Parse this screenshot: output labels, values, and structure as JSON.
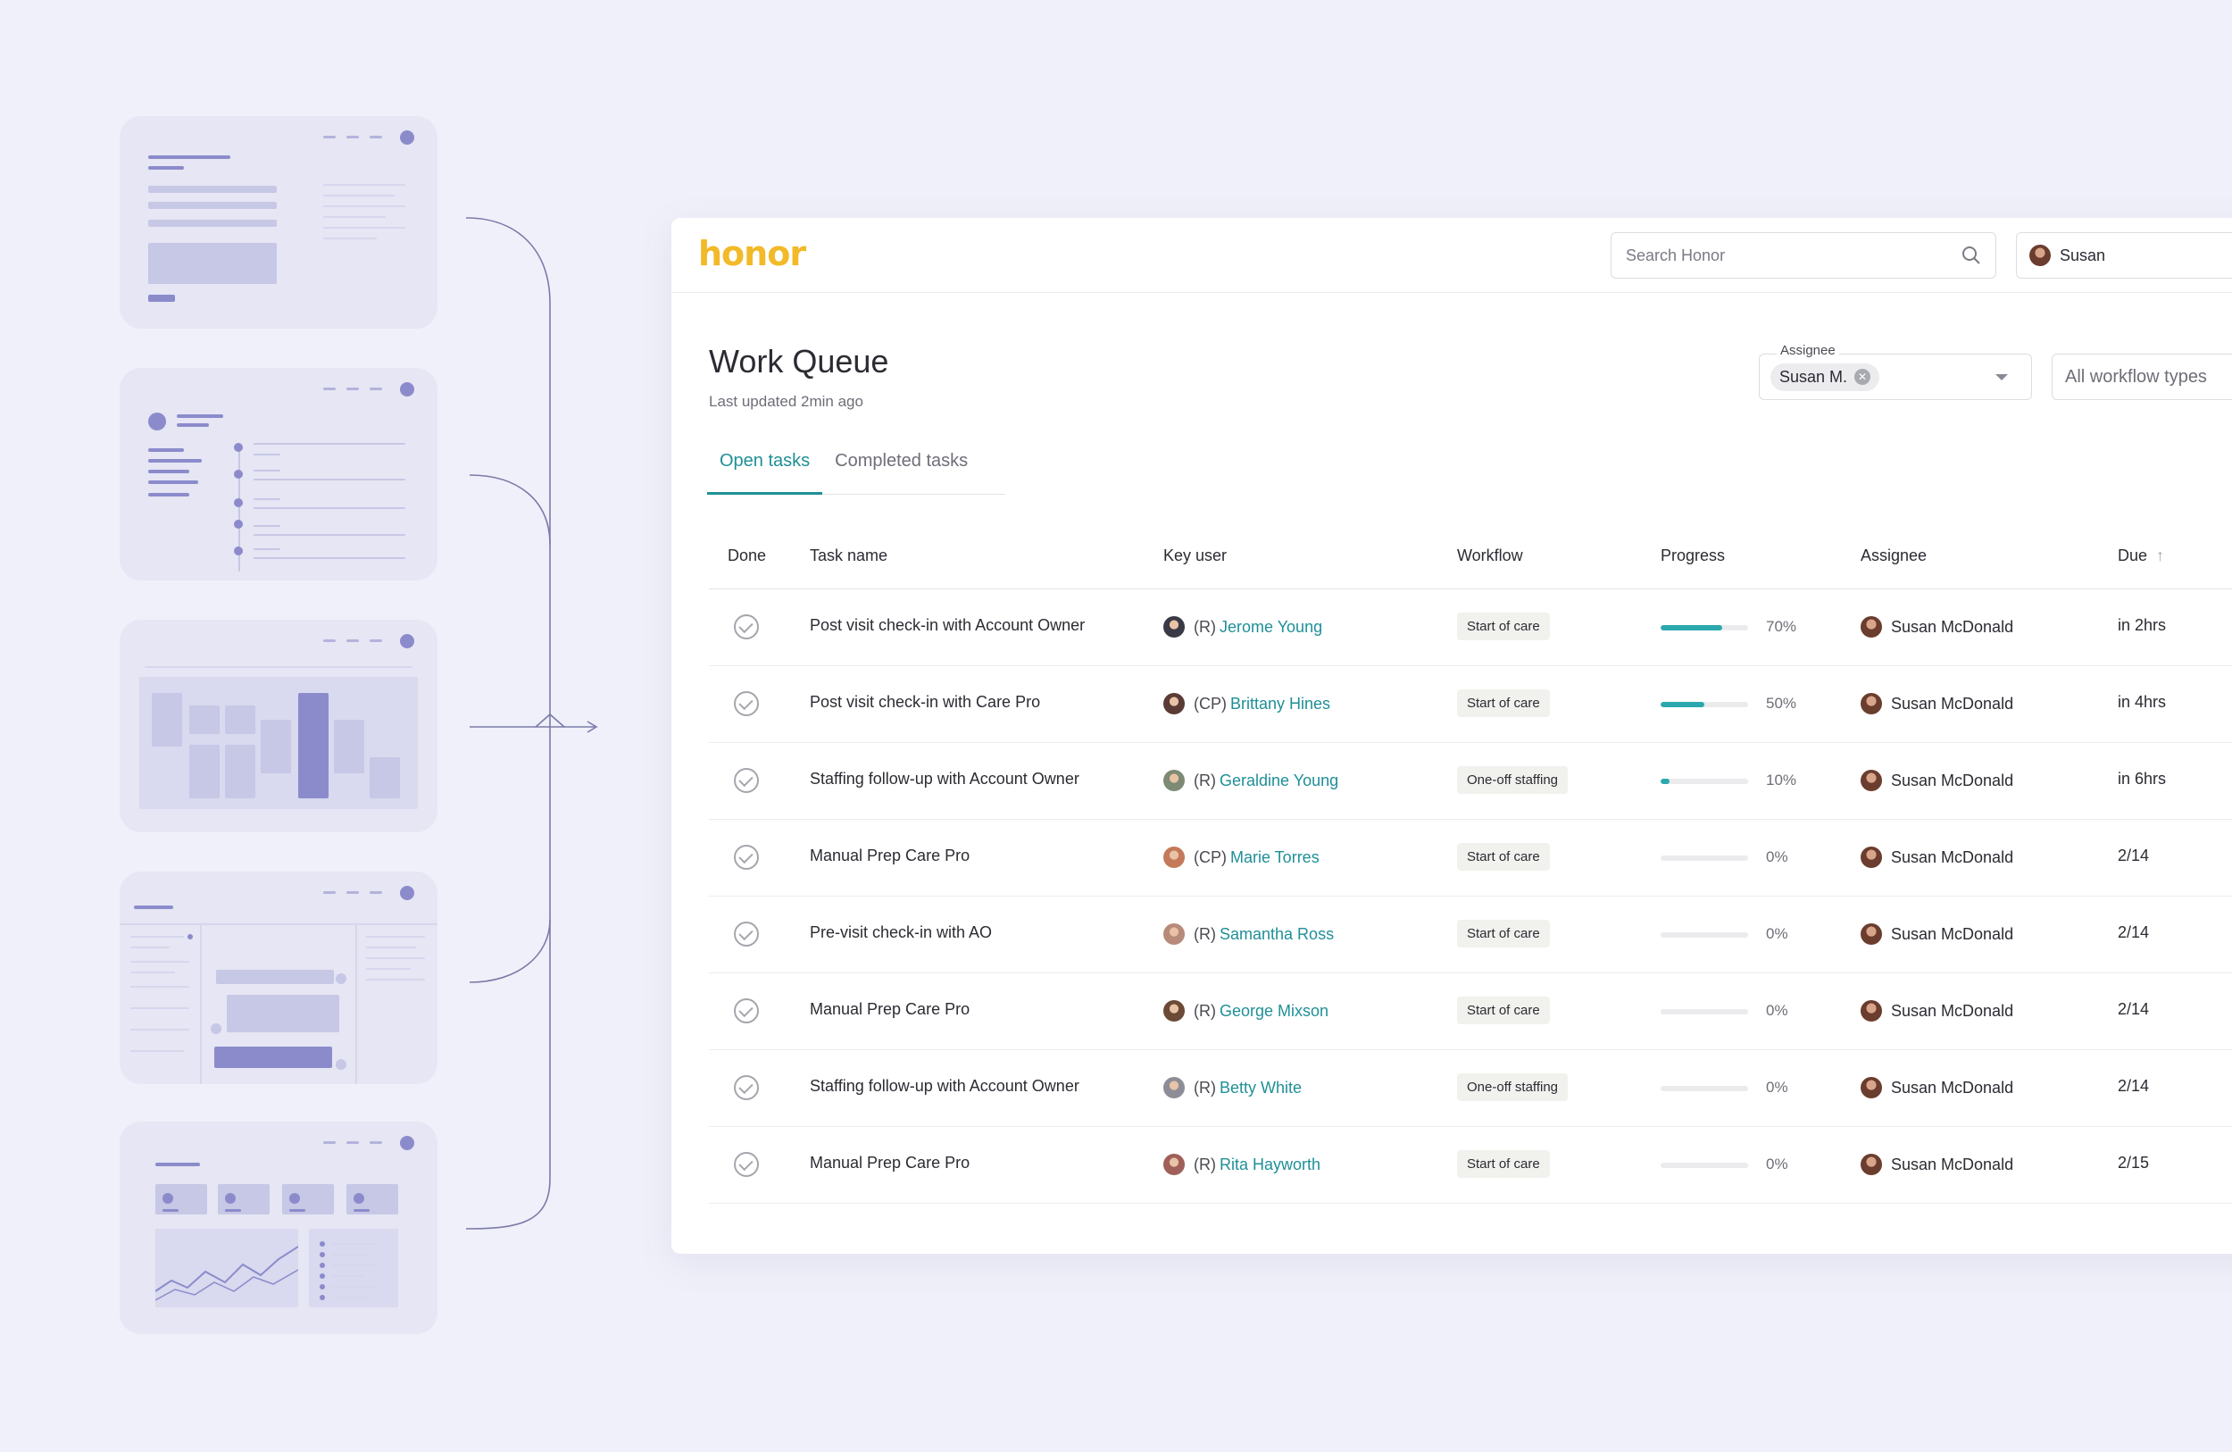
{
  "colors": {
    "brand": "#f2b928",
    "accent": "#1f8f97",
    "progress": "#2ba8ad",
    "background": "#f0f0fa",
    "wireframe": "#8b8bcc"
  },
  "header": {
    "logo": "honor",
    "search_placeholder": "Search Honor",
    "user_name": "Susan"
  },
  "page": {
    "title": "Work Queue",
    "subtitle": "Last updated 2min ago"
  },
  "tabs": [
    {
      "label": "Open tasks",
      "active": true
    },
    {
      "label": "Completed tasks",
      "active": false
    }
  ],
  "filters": {
    "assignee_label": "Assignee",
    "assignee_value": "Susan M.",
    "workflow_value": "All workflow types"
  },
  "columns": [
    "Done",
    "Task name",
    "Key user",
    "Workflow",
    "Progress",
    "Assignee",
    "Due"
  ],
  "rows": [
    {
      "task": "Post visit check-in with Account Owner",
      "role": "(R)",
      "key_user": "Jerome Young",
      "avatar_color": "#3a3a46",
      "workflow": "Start of care",
      "progress": 70,
      "progress_label": "70%",
      "assignee": "Susan McDonald",
      "due": "in 2hrs"
    },
    {
      "task": "Post visit check-in with Care Pro",
      "role": "(CP)",
      "key_user": "Brittany Hines",
      "avatar_color": "#5a3b35",
      "workflow": "Start of care",
      "progress": 50,
      "progress_label": "50%",
      "assignee": "Susan McDonald",
      "due": "in 4hrs"
    },
    {
      "task": "Staffing follow-up with Account Owner",
      "role": "(R)",
      "key_user": "Geraldine Young",
      "avatar_color": "#7d8a74",
      "workflow": "One-off staffing",
      "progress": 10,
      "progress_label": "10%",
      "assignee": "Susan McDonald",
      "due": "in 6hrs"
    },
    {
      "task": "Manual Prep Care Pro",
      "role": "(CP)",
      "key_user": "Marie Torres",
      "avatar_color": "#c47a5a",
      "workflow": "Start of care",
      "progress": 0,
      "progress_label": "0%",
      "assignee": "Susan McDonald",
      "due": "2/14"
    },
    {
      "task": "Pre-visit check-in with AO",
      "role": "(R)",
      "key_user": "Samantha Ross",
      "avatar_color": "#b88a7a",
      "workflow": "Start of care",
      "progress": 0,
      "progress_label": "0%",
      "assignee": "Susan McDonald",
      "due": "2/14"
    },
    {
      "task": "Manual Prep Care Pro",
      "role": "(R)",
      "key_user": "George Mixson",
      "avatar_color": "#6b4a36",
      "workflow": "Start of care",
      "progress": 0,
      "progress_label": "0%",
      "assignee": "Susan McDonald",
      "due": "2/14"
    },
    {
      "task": "Staffing follow-up with Account Owner",
      "role": "(R)",
      "key_user": "Betty White",
      "avatar_color": "#8d8d98",
      "workflow": "One-off staffing",
      "progress": 0,
      "progress_label": "0%",
      "assignee": "Susan McDonald",
      "due": "2/14"
    },
    {
      "task": "Manual Prep Care Pro",
      "role": "(R)",
      "key_user": "Rita Hayworth",
      "avatar_color": "#a0605a",
      "workflow": "Start of care",
      "progress": 0,
      "progress_label": "0%",
      "assignee": "Susan McDonald",
      "due": "2/15"
    }
  ]
}
